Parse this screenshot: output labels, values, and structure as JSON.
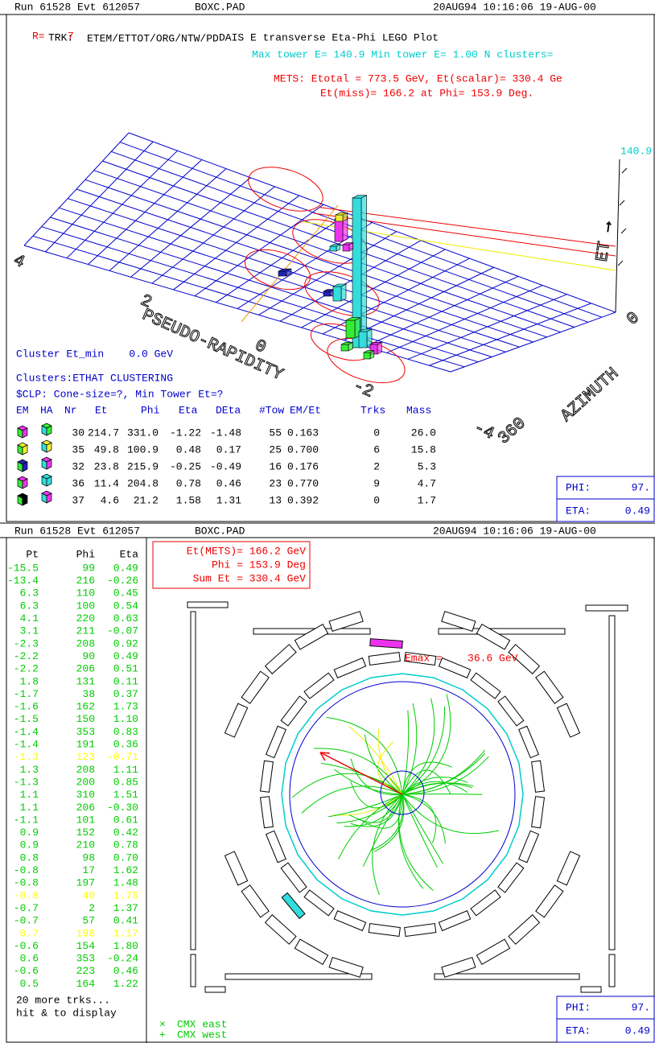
{
  "top_panel": {
    "header": {
      "run": "Run 61528 Evt 612057",
      "file": "BOXC.PAD",
      "datetime": "20AUG94 10:16:06 19-AUG-00"
    },
    "labels": {
      "r": "R=",
      "trk": "TRK:",
      "trk_value": "7",
      "variables": "ETEM/ETTOT/ORG/NTW/PD",
      "title": "DAIS E transverse Eta-Phi LEGO Plot",
      "tower_info": "Max tower E= 140.9 Min tower E=  1.00  N clusters=",
      "mets_line1": "METS: Etotal = 773.5 GeV,   Et(scalar)= 330.4 Ge",
      "mets_line2": "Et(miss)= 166.2 at Phi= 153.9 Deg."
    },
    "lego": {
      "et_max": "140.9",
      "et_axis": "ET →",
      "azimuth_axis": "AZIMUTH",
      "azimuth_ticks": [
        "0",
        "360"
      ],
      "eta_axis": "PSEUDO-RAPIDITY",
      "eta_ticks": [
        "4",
        "2",
        "0",
        "-2",
        "-4"
      ]
    },
    "clusters": {
      "et_min": "Cluster Et_min    0.0 GeV",
      "algorithm": "Clusters:ETHAT CLUSTERING",
      "parameters": "$CLP: Cone-size=?, Min Tower Et=?",
      "columns": [
        "EM",
        "HA",
        "Nr",
        "Et",
        "Phi",
        "Eta",
        "DEta",
        "#Tow",
        "EM/Et",
        "Trks",
        "Mass"
      ],
      "rows": [
        [
          "30",
          "214.7",
          "331.0",
          "-1.22",
          "-1.48",
          "55",
          "0.163",
          "0",
          "26.0"
        ],
        [
          "35",
          "49.8",
          "100.9",
          "0.48",
          "0.17",
          "25",
          "0.700",
          "6",
          "15.8"
        ],
        [
          "32",
          "23.8",
          "215.9",
          "-0.25",
          "-0.49",
          "16",
          "0.176",
          "2",
          "5.3"
        ],
        [
          "36",
          "11.4",
          "204.8",
          "0.78",
          "0.46",
          "23",
          "0.770",
          "9",
          "4.7"
        ],
        [
          "37",
          "4.6",
          "21.2",
          "1.58",
          "1.31",
          "13",
          "0.392",
          "0",
          "1.7"
        ]
      ]
    },
    "cursor": {
      "phi_label": "PHI:",
      "phi_value": "97.",
      "eta_label": "ETA:",
      "eta_value": "0.49"
    }
  },
  "bottom_panel": {
    "header": {
      "run": "Run 61528 Evt 612057",
      "file": "BOXC.PAD",
      "datetime": "20AUG94 10:16:06 19-AUG-00"
    },
    "tracks": {
      "columns": [
        "Pt",
        "Phi",
        "Eta"
      ],
      "rows": [
        {
          "cells": [
            "-15.5",
            "99",
            "0.49"
          ],
          "color": "#00cc00"
        },
        {
          "cells": [
            "-13.4",
            "216",
            "-0.26"
          ],
          "color": "#00cc00"
        },
        {
          "cells": [
            "6.3",
            "110",
            "0.45"
          ],
          "color": "#00cc00"
        },
        {
          "cells": [
            "6.3",
            "100",
            "0.54"
          ],
          "color": "#00cc00"
        },
        {
          "cells": [
            "4.1",
            "220",
            "0.63"
          ],
          "color": "#00cc00"
        },
        {
          "cells": [
            "3.1",
            "211",
            "-0.07"
          ],
          "color": "#00cc00"
        },
        {
          "cells": [
            "-2.3",
            "208",
            "0.92"
          ],
          "color": "#00cc00"
        },
        {
          "cells": [
            "-2.2",
            "90",
            "0.49"
          ],
          "color": "#00cc00"
        },
        {
          "cells": [
            "-2.2",
            "206",
            "0.51"
          ],
          "color": "#00cc00"
        },
        {
          "cells": [
            "1.8",
            "131",
            "0.11"
          ],
          "color": "#00cc00"
        },
        {
          "cells": [
            "-1.7",
            "38",
            "0.37"
          ],
          "color": "#00cc00"
        },
        {
          "cells": [
            "-1.6",
            "162",
            "1.73"
          ],
          "color": "#00cc00"
        },
        {
          "cells": [
            "-1.5",
            "150",
            "1.10"
          ],
          "color": "#00cc00"
        },
        {
          "cells": [
            "-1.4",
            "353",
            "0.83"
          ],
          "color": "#00cc00"
        },
        {
          "cells": [
            "-1.4",
            "191",
            "0.36"
          ],
          "color": "#00cc00"
        },
        {
          "cells": [
            "-1.3",
            "123",
            "-0.71"
          ],
          "color": "#ffff00"
        },
        {
          "cells": [
            "1.3",
            "208",
            "1.11"
          ],
          "color": "#00cc00"
        },
        {
          "cells": [
            "-1.3",
            "200",
            "0.85"
          ],
          "color": "#00cc00"
        },
        {
          "cells": [
            "1.1",
            "310",
            "1.51"
          ],
          "color": "#00cc00"
        },
        {
          "cells": [
            "1.1",
            "206",
            "-0.30"
          ],
          "color": "#00cc00"
        },
        {
          "cells": [
            "-1.1",
            "101",
            "0.61"
          ],
          "color": "#00cc00"
        },
        {
          "cells": [
            "0.9",
            "152",
            "0.42"
          ],
          "color": "#00cc00"
        },
        {
          "cells": [
            "0.9",
            "210",
            "0.78"
          ],
          "color": "#00cc00"
        },
        {
          "cells": [
            "0.8",
            "98",
            "0.70"
          ],
          "color": "#00cc00"
        },
        {
          "cells": [
            "-0.8",
            "17",
            "1.62"
          ],
          "color": "#00cc00"
        },
        {
          "cells": [
            "-0.8",
            "197",
            "1.48"
          ],
          "color": "#00cc00"
        },
        {
          "cells": [
            "-0.8",
            "40",
            "1.75"
          ],
          "color": "#ffff00"
        },
        {
          "cells": [
            "-0.7",
            "2",
            "1.37"
          ],
          "color": "#00cc00"
        },
        {
          "cells": [
            "-0.7",
            "57",
            "0.41"
          ],
          "color": "#00cc00"
        },
        {
          "cells": [
            "0.7",
            "198",
            "1.17"
          ],
          "color": "#ffff00"
        },
        {
          "cells": [
            "-0.6",
            "154",
            "1.80"
          ],
          "color": "#00cc00"
        },
        {
          "cells": [
            "0.6",
            "353",
            "-0.24"
          ],
          "color": "#00cc00"
        },
        {
          "cells": [
            "-0.6",
            "223",
            "0.46"
          ],
          "color": "#00cc00"
        },
        {
          "cells": [
            "0.5",
            "164",
            "1.22"
          ],
          "color": "#00cc00"
        }
      ],
      "more": "20 more trks...",
      "hint": "hit & to display"
    },
    "mets": {
      "et": "Et(METS)= 166.2 GeV",
      "phi": "Phi = 153.9 Deg",
      "sum": "Sum Et = 330.4 GeV"
    },
    "emax": "Emax =    36.6 GeV",
    "legend": [
      {
        "symbol": "×",
        "name": "CMX east"
      },
      {
        "symbol": "+",
        "name": "CMX west"
      }
    ],
    "cursor": {
      "phi_label": "PHI:",
      "phi_value": "97.",
      "eta_label": "ETA:",
      "eta_value": "0.49"
    }
  }
}
